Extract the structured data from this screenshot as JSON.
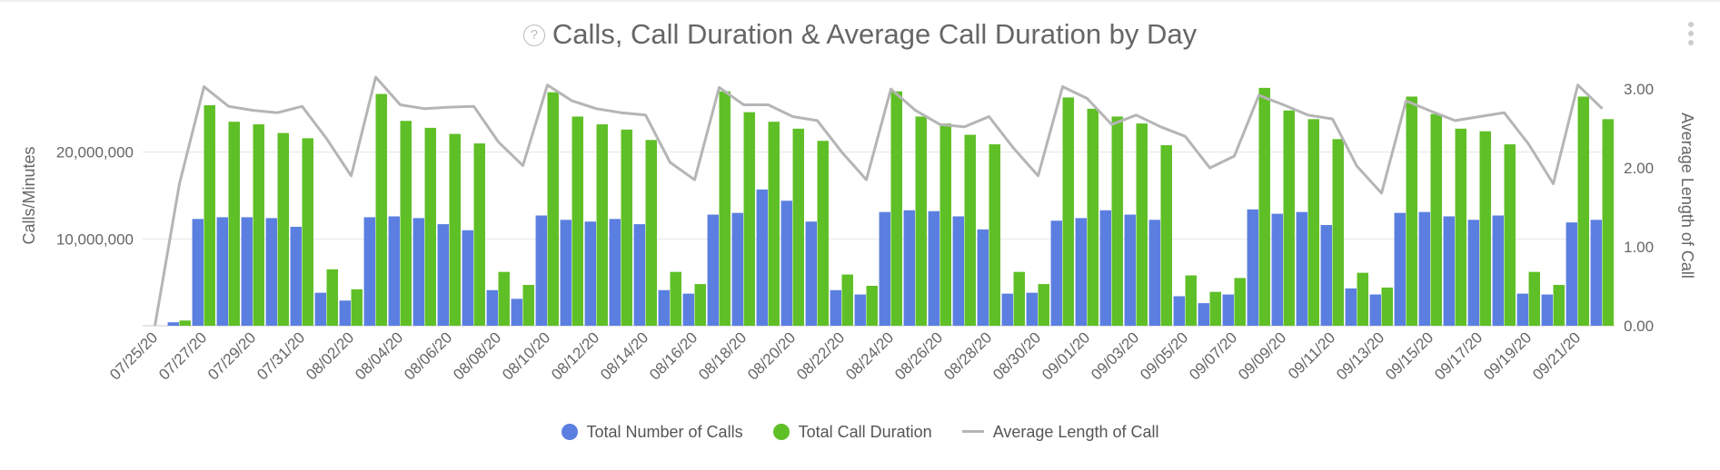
{
  "header": {
    "title": "Calls, Call Duration & Average Call Duration by Day",
    "help_icon": "question-circle-icon",
    "menu_icon": "kebab-menu-icon"
  },
  "colors": {
    "calls": "#5b7fe0",
    "duration": "#5fbf26",
    "average": "#b5b5b5",
    "grid": "#e6e6e6",
    "axis_text": "#666666"
  },
  "chart_data": {
    "type": "bar",
    "title": "Calls, Call Duration & Average Call Duration by Day",
    "ylabel": "Calls/Minutes",
    "y2label": "Average Length of Call",
    "ylim": [
      0,
      30000000
    ],
    "y2lim": [
      0,
      3.3
    ],
    "yticks": [
      10000000,
      20000000
    ],
    "ytick_labels": [
      "10,000,000",
      "20,000,000"
    ],
    "y2ticks": [
      0,
      1,
      2,
      3
    ],
    "y2tick_labels": [
      "0.00",
      "1.00",
      "2.00",
      "3.00"
    ],
    "grid": true,
    "legend_position": "bottom",
    "categories": [
      "07/25/20",
      "07/26/20",
      "07/27/20",
      "07/28/20",
      "07/29/20",
      "07/30/20",
      "07/31/20",
      "08/01/20",
      "08/02/20",
      "08/03/20",
      "08/04/20",
      "08/05/20",
      "08/06/20",
      "08/07/20",
      "08/08/20",
      "08/09/20",
      "08/10/20",
      "08/11/20",
      "08/12/20",
      "08/13/20",
      "08/14/20",
      "08/15/20",
      "08/16/20",
      "08/17/20",
      "08/18/20",
      "08/19/20",
      "08/20/20",
      "08/21/20",
      "08/22/20",
      "08/23/20",
      "08/24/20",
      "08/25/20",
      "08/26/20",
      "08/27/20",
      "08/28/20",
      "08/29/20",
      "08/30/20",
      "08/31/20",
      "09/01/20",
      "09/02/20",
      "09/03/20",
      "09/04/20",
      "09/05/20",
      "09/06/20",
      "09/07/20",
      "09/08/20",
      "09/09/20",
      "09/10/20",
      "09/11/20",
      "09/12/20",
      "09/13/20",
      "09/14/20",
      "09/15/20",
      "09/16/20",
      "09/17/20",
      "09/18/20",
      "09/19/20",
      "09/20/20",
      "09/21/20",
      "09/22/20"
    ],
    "tick_labels": [
      "07/25/20",
      "07/27/20",
      "07/29/20",
      "07/31/20",
      "08/02/20",
      "08/04/20",
      "08/06/20",
      "08/08/20",
      "08/10/20",
      "08/12/20",
      "08/14/20",
      "08/16/20",
      "08/18/20",
      "08/20/20",
      "08/22/20",
      "08/24/20",
      "08/26/20",
      "08/28/20",
      "08/30/20",
      "09/01/20",
      "09/03/20",
      "09/05/20",
      "09/07/20",
      "09/09/20",
      "09/11/20",
      "09/13/20",
      "09/15/20",
      "09/17/20",
      "09/19/20",
      "09/21/20"
    ],
    "series": [
      {
        "name": "Total Number of Calls",
        "axis": "left",
        "kind": "bar",
        "values": [
          0,
          400000,
          12300000,
          12500000,
          12500000,
          12400000,
          11400000,
          3800000,
          2900000,
          12500000,
          12600000,
          12400000,
          11700000,
          11000000,
          4100000,
          3100000,
          12700000,
          12200000,
          12000000,
          12300000,
          11700000,
          4100000,
          3700000,
          12800000,
          13000000,
          15700000,
          14400000,
          12000000,
          4100000,
          3600000,
          13100000,
          13300000,
          13200000,
          12600000,
          11100000,
          3700000,
          3800000,
          12100000,
          12400000,
          13300000,
          12800000,
          12200000,
          3400000,
          2600000,
          3600000,
          13400000,
          12900000,
          13100000,
          11600000,
          4300000,
          3600000,
          13000000,
          13100000,
          12600000,
          12200000,
          12700000,
          3700000,
          3600000,
          11900000,
          12200000
        ]
      },
      {
        "name": "Total Call Duration",
        "axis": "left",
        "kind": "bar",
        "values": [
          0,
          600000,
          25400000,
          23500000,
          23200000,
          22200000,
          21600000,
          6500000,
          4200000,
          26700000,
          23600000,
          22800000,
          22100000,
          21000000,
          6200000,
          4700000,
          26900000,
          24100000,
          23200000,
          22600000,
          21400000,
          6200000,
          4800000,
          27000000,
          24600000,
          23500000,
          22700000,
          21300000,
          5900000,
          4600000,
          27000000,
          24100000,
          23300000,
          22000000,
          20900000,
          6200000,
          4800000,
          26300000,
          25000000,
          24100000,
          23300000,
          20800000,
          5800000,
          3900000,
          5500000,
          27400000,
          24800000,
          23800000,
          21500000,
          6100000,
          4400000,
          26400000,
          24400000,
          22700000,
          22400000,
          20900000,
          6200000,
          4700000,
          26400000,
          23800000
        ]
      },
      {
        "name": "Average Length of Call",
        "axis": "right",
        "kind": "line",
        "values": [
          0,
          1.8,
          3.03,
          2.78,
          2.73,
          2.7,
          2.78,
          2.37,
          1.9,
          3.15,
          2.8,
          2.75,
          2.77,
          2.78,
          2.33,
          2.03,
          3.05,
          2.85,
          2.75,
          2.7,
          2.67,
          2.07,
          1.85,
          3.02,
          2.8,
          2.8,
          2.65,
          2.6,
          2.2,
          1.85,
          3.0,
          2.73,
          2.55,
          2.52,
          2.65,
          2.25,
          1.9,
          3.03,
          2.88,
          2.55,
          2.67,
          2.52,
          2.4,
          2.0,
          2.15,
          2.92,
          2.8,
          2.67,
          2.62,
          2.02,
          1.68,
          2.85,
          2.72,
          2.6,
          2.65,
          2.7,
          2.3,
          1.8,
          3.05,
          2.75
        ]
      }
    ]
  }
}
